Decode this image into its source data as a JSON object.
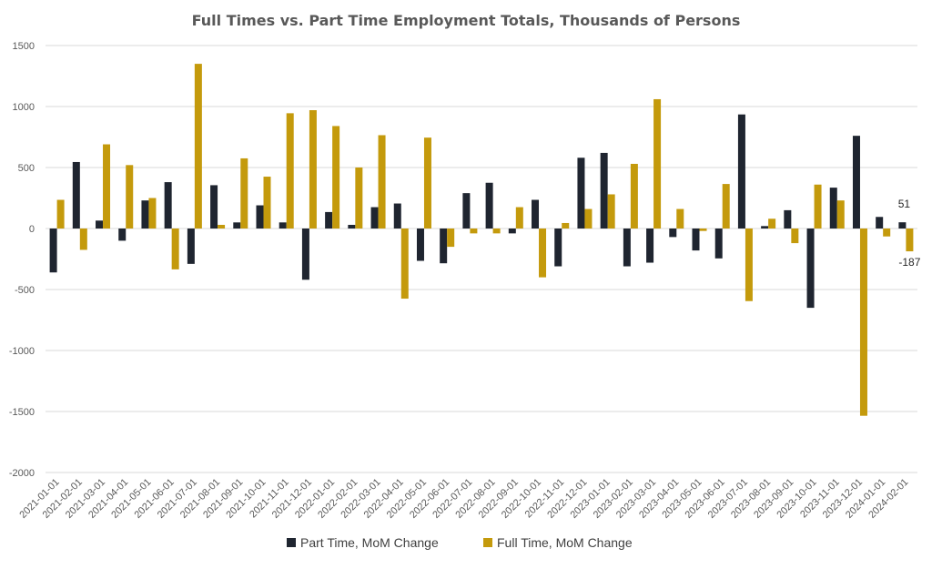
{
  "chart_data": {
    "type": "bar",
    "title": "Full Times vs. Part Time Employment Totals, Thousands of Persons",
    "xlabel": "",
    "ylabel": "",
    "ylim": [
      -2000,
      1500
    ],
    "yticks": [
      1500,
      1000,
      500,
      0,
      -500,
      -1000,
      -1500,
      -2000
    ],
    "grid": true,
    "legend_position": "bottom",
    "categories": [
      "2021-01-01",
      "2021-02-01",
      "2021-03-01",
      "2021-04-01",
      "2021-05-01",
      "2021-06-01",
      "2021-07-01",
      "2021-08-01",
      "2021-09-01",
      "2021-10-01",
      "2021-11-01",
      "2021-12-01",
      "2022-01-01",
      "2022-02-01",
      "2022-03-01",
      "2022-04-01",
      "2022-05-01",
      "2022-06-01",
      "2022-07-01",
      "2022-08-01",
      "2022-09-01",
      "2022-10-01",
      "2022-11-01",
      "2022-12-01",
      "2023-01-01",
      "2023-02-01",
      "2023-03-01",
      "2023-04-01",
      "2023-05-01",
      "2023-06-01",
      "2023-07-01",
      "2023-08-01",
      "2023-09-01",
      "2023-10-01",
      "2023-11-01",
      "2023-12-01",
      "2024-01-01",
      "2024-02-01"
    ],
    "series": [
      {
        "name": "Part Time, MoM Change",
        "color": "#1f2530",
        "values": [
          -360,
          545,
          65,
          -100,
          230,
          380,
          -290,
          355,
          50,
          190,
          50,
          -420,
          135,
          30,
          175,
          205,
          -265,
          -285,
          290,
          375,
          -40,
          235,
          -310,
          580,
          620,
          -310,
          -280,
          -70,
          -180,
          -245,
          935,
          20,
          150,
          -650,
          335,
          760,
          95,
          51
        ]
      },
      {
        "name": "Full Time, MoM Change",
        "color": "#c49a0c",
        "values": [
          235,
          -175,
          690,
          520,
          250,
          -335,
          1350,
          30,
          575,
          425,
          945,
          970,
          840,
          500,
          765,
          -575,
          745,
          -150,
          -40,
          -40,
          175,
          -400,
          45,
          160,
          280,
          530,
          1060,
          160,
          -20,
          365,
          -595,
          80,
          -120,
          360,
          230,
          -1535,
          -65,
          -187
        ]
      }
    ],
    "data_labels": [
      {
        "series": 0,
        "index": 37,
        "text": "51"
      },
      {
        "series": 1,
        "index": 37,
        "text": "-187"
      }
    ]
  }
}
